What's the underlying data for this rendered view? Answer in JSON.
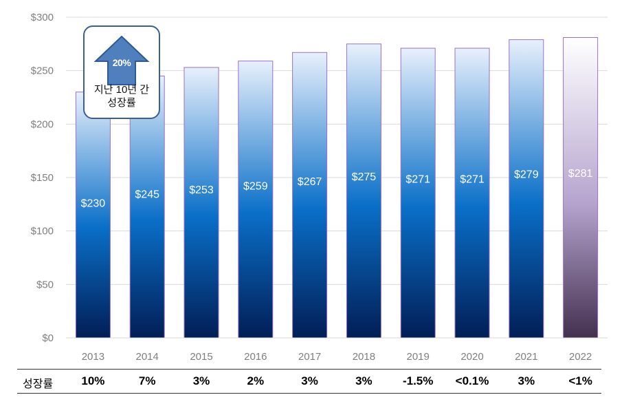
{
  "chart_data": {
    "type": "bar",
    "categories": [
      "2013",
      "2014",
      "2015",
      "2016",
      "2017",
      "2018",
      "2019",
      "2020",
      "2021",
      "2022"
    ],
    "values": [
      230,
      245,
      253,
      259,
      267,
      275,
      271,
      271,
      279,
      281
    ],
    "data_labels": [
      "$230",
      "$245",
      "$253",
      "$259",
      "$267",
      "$275",
      "$271",
      "$271",
      "$279",
      "$281"
    ],
    "yticks": [
      "$0",
      "$50",
      "$100",
      "$150",
      "$200",
      "$250",
      "$300"
    ],
    "ytick_values": [
      0,
      50,
      100,
      150,
      200,
      250,
      300
    ],
    "ylim": [
      0,
      300
    ],
    "grid": true,
    "highlight_category": "2022",
    "colors": {
      "bar_top": "#e8f0fc",
      "bar_mid": "#0a6fc8",
      "bar_bottom": "#021e56",
      "highlight_top": "#ffffff",
      "highlight_mid": "#b6a4cf",
      "highlight_bottom": "#43304f",
      "bar_edge": "#9b70c7",
      "grid": "#d9d9d9"
    }
  },
  "callout": {
    "percent": "20%",
    "text_line1": "지난 10년 간",
    "text_line2": "성장률",
    "icon": "up-arrow-icon",
    "arrow_color": "#4f7fbd",
    "border_color": "#3b5f8f"
  },
  "growth_row": {
    "label": "성장률",
    "values": [
      "10%",
      "7%",
      "3%",
      "2%",
      "3%",
      "3%",
      "-1.5%",
      "<0.1%",
      "3%",
      "<1%"
    ]
  }
}
